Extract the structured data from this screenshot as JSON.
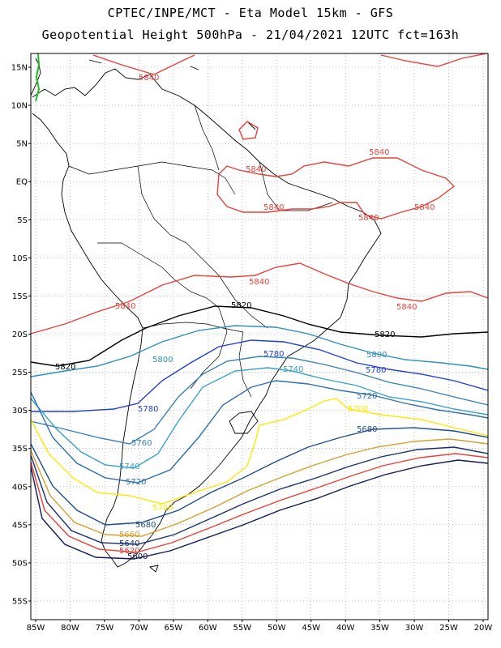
{
  "header": {
    "line1": "CPTEC/INPE/MCT -  Eta Model 15km - GFS",
    "line2": "Geopotential Height 500hPa - 21/04/2021 12UTC fct=163h"
  },
  "axes": {
    "lat_labels": [
      "15N",
      "10N",
      "5N",
      "EQ",
      "5S",
      "10S",
      "15S",
      "20S",
      "25S",
      "30S",
      "35S",
      "40S",
      "45S",
      "50S",
      "55S"
    ],
    "lon_labels": [
      "85W",
      "80W",
      "75W",
      "70W",
      "65W",
      "60W",
      "55W",
      "50W",
      "45W",
      "40W",
      "35W",
      "30W",
      "25W",
      "20W"
    ]
  },
  "contours": [
    {
      "value": "5840",
      "color": "#e8413a"
    },
    {
      "value": "5820",
      "color": "#000000"
    },
    {
      "value": "5800",
      "color": "#2c8fbf"
    },
    {
      "value": "5780",
      "color": "#1f3fd6"
    },
    {
      "value": "5760",
      "color": "#3a7fb5"
    },
    {
      "value": "5740",
      "color": "#3aa0c8"
    },
    {
      "value": "5720",
      "color": "#2f6fb0"
    },
    {
      "value": "5700",
      "color": "#ffe800"
    },
    {
      "value": "5680",
      "color": "#1e4e8c"
    },
    {
      "value": "5660",
      "color": "#d4a030"
    },
    {
      "value": "5640",
      "color": "#18306e"
    },
    {
      "value": "5620",
      "color": "#e8413a"
    },
    {
      "value": "5600",
      "color": "#0d1a55"
    }
  ],
  "labels": {
    "n5840": "5840",
    "n5820": "5820",
    "n5800": "5800",
    "n5780": "5780",
    "n5760": "5760",
    "n5740": "5740",
    "n5720": "5720",
    "n5700": "5700",
    "n5680": "5680",
    "n5660": "5660",
    "n5640": "5640",
    "n5620": "5620",
    "n5600": "5600"
  }
}
